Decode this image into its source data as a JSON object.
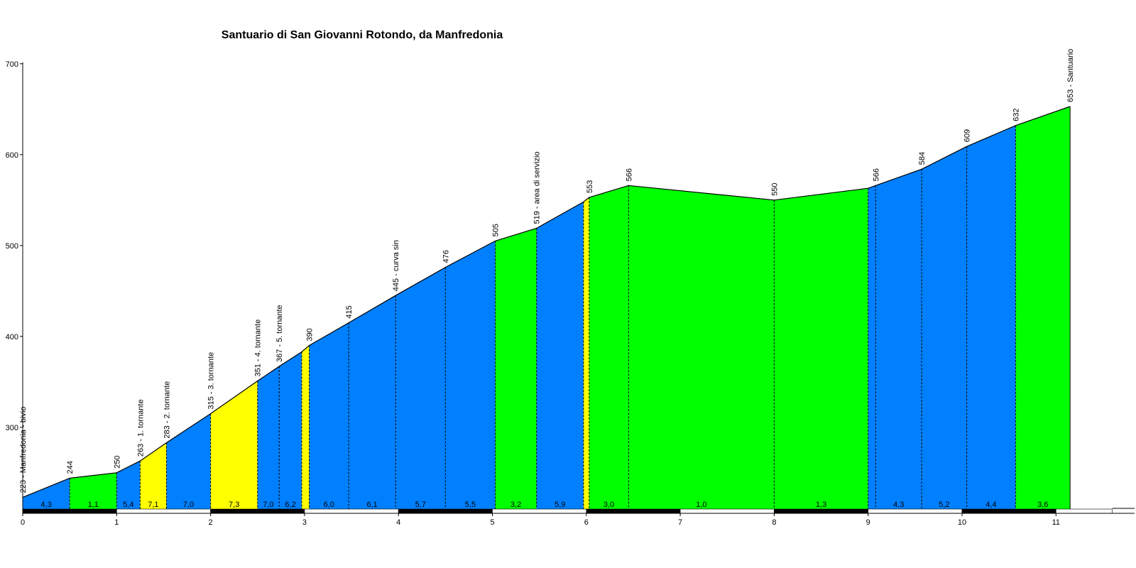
{
  "chart_data": {
    "type": "area",
    "title": "Santuario di San Giovanni Rotondo, da Manfredonia",
    "xlabel": "",
    "ylabel": "",
    "xlim": [
      0,
      11.6
    ],
    "ylim": [
      210,
      700
    ],
    "x_ticks": [
      0,
      1,
      2,
      3,
      4,
      5,
      6,
      7,
      8,
      9,
      10,
      11
    ],
    "y_ticks": [
      300,
      400,
      500,
      600,
      700
    ],
    "grid": false,
    "profile_points": [
      {
        "km": 0.0,
        "alt": 223,
        "label": "223 - Manfredonia - bivio"
      },
      {
        "km": 0.5,
        "alt": 244,
        "label": "244"
      },
      {
        "km": 1.0,
        "alt": 250,
        "label": "250"
      },
      {
        "km": 1.25,
        "alt": 263,
        "label": "263 - 1. tornante"
      },
      {
        "km": 1.53,
        "alt": 283,
        "label": "283 - 2. tornante"
      },
      {
        "km": 2.0,
        "alt": 315,
        "label": "315 - 3. tornante"
      },
      {
        "km": 2.5,
        "alt": 351,
        "label": "351 - 4. tornante"
      },
      {
        "km": 2.73,
        "alt": 367,
        "label": "367 - 5. tornante"
      },
      {
        "km": 2.97,
        "alt": 383,
        "label": ""
      },
      {
        "km": 3.05,
        "alt": 390,
        "label": "390"
      },
      {
        "km": 3.47,
        "alt": 415,
        "label": "415"
      },
      {
        "km": 3.97,
        "alt": 445,
        "label": "445 - curva sin"
      },
      {
        "km": 4.5,
        "alt": 476,
        "label": "476"
      },
      {
        "km": 5.03,
        "alt": 505,
        "label": "505"
      },
      {
        "km": 5.47,
        "alt": 519,
        "label": "519 - area di servizio"
      },
      {
        "km": 5.97,
        "alt": 548,
        "label": ""
      },
      {
        "km": 6.03,
        "alt": 553,
        "label": "553"
      },
      {
        "km": 6.45,
        "alt": 566,
        "label": "566"
      },
      {
        "km": 8.0,
        "alt": 550,
        "label": "550"
      },
      {
        "km": 9.0,
        "alt": 563,
        "label": ""
      },
      {
        "km": 9.08,
        "alt": 566,
        "label": "566"
      },
      {
        "km": 9.57,
        "alt": 584,
        "label": "584"
      },
      {
        "km": 10.05,
        "alt": 609,
        "label": "609"
      },
      {
        "km": 10.57,
        "alt": 632,
        "label": "632"
      },
      {
        "km": 11.15,
        "alt": 653,
        "label": "653 - Santuario"
      }
    ],
    "segments": [
      {
        "from": 0.0,
        "to": 0.5,
        "gradient": "4,3",
        "color": "#0080ff"
      },
      {
        "from": 0.5,
        "to": 1.0,
        "gradient": "1,1",
        "color": "#00ff00"
      },
      {
        "from": 1.0,
        "to": 1.25,
        "gradient": "5,4",
        "color": "#0080ff"
      },
      {
        "from": 1.25,
        "to": 1.53,
        "gradient": "7,1",
        "color": "#ffff00"
      },
      {
        "from": 1.53,
        "to": 2.0,
        "gradient": "7,0",
        "color": "#0080ff"
      },
      {
        "from": 2.0,
        "to": 2.5,
        "gradient": "7,3",
        "color": "#ffff00"
      },
      {
        "from": 2.5,
        "to": 2.73,
        "gradient": "7,0",
        "color": "#0080ff"
      },
      {
        "from": 2.73,
        "to": 2.97,
        "gradient": "6,2",
        "color": "#0080ff"
      },
      {
        "from": 2.97,
        "to": 3.05,
        "gradient": "",
        "color": "#ffff00"
      },
      {
        "from": 3.05,
        "to": 3.47,
        "gradient": "6,0",
        "color": "#0080ff"
      },
      {
        "from": 3.47,
        "to": 3.97,
        "gradient": "6,1",
        "color": "#0080ff"
      },
      {
        "from": 3.97,
        "to": 4.5,
        "gradient": "5,7",
        "color": "#0080ff"
      },
      {
        "from": 4.5,
        "to": 5.03,
        "gradient": "5,5",
        "color": "#0080ff"
      },
      {
        "from": 5.03,
        "to": 5.47,
        "gradient": "3,2",
        "color": "#00ff00"
      },
      {
        "from": 5.47,
        "to": 5.97,
        "gradient": "5,9",
        "color": "#0080ff"
      },
      {
        "from": 5.97,
        "to": 6.03,
        "gradient": "",
        "color": "#ffff00"
      },
      {
        "from": 6.03,
        "to": 6.45,
        "gradient": "3,0",
        "color": "#00ff00"
      },
      {
        "from": 6.45,
        "to": 8.0,
        "gradient": "1,0",
        "color": "#00ff00"
      },
      {
        "from": 8.0,
        "to": 9.0,
        "gradient": "1,3",
        "color": "#00ff00"
      },
      {
        "from": 9.0,
        "to": 9.08,
        "gradient": "",
        "color": "#0080ff"
      },
      {
        "from": 9.08,
        "to": 9.57,
        "gradient": "4,3",
        "color": "#0080ff"
      },
      {
        "from": 9.57,
        "to": 10.05,
        "gradient": "5,2",
        "color": "#0080ff"
      },
      {
        "from": 10.05,
        "to": 10.57,
        "gradient": "4,4",
        "color": "#0080ff"
      },
      {
        "from": 10.57,
        "to": 11.15,
        "gradient": "3,6",
        "color": "#00ff00"
      }
    ],
    "km_bar": [
      {
        "from": 0,
        "to": 1,
        "color": "#000000"
      },
      {
        "from": 1,
        "to": 2,
        "color": "#ffffff"
      },
      {
        "from": 2,
        "to": 3,
        "color": "#000000"
      },
      {
        "from": 3,
        "to": 4,
        "color": "#ffffff"
      },
      {
        "from": 4,
        "to": 5,
        "color": "#000000"
      },
      {
        "from": 5,
        "to": 6,
        "color": "#ffffff"
      },
      {
        "from": 6,
        "to": 7,
        "color": "#000000"
      },
      {
        "from": 7,
        "to": 8,
        "color": "#ffffff"
      },
      {
        "from": 8,
        "to": 9,
        "color": "#000000"
      },
      {
        "from": 9,
        "to": 10,
        "color": "#ffffff"
      },
      {
        "from": 10,
        "to": 11,
        "color": "#000000"
      },
      {
        "from": 11,
        "to": 11.6,
        "color": "#ffffff"
      }
    ]
  }
}
